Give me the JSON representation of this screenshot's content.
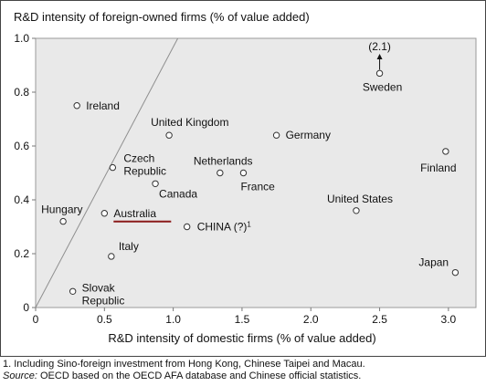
{
  "chart_data": {
    "type": "scatter",
    "ylabel": "R&D intensity of foreign-owned firms (% of value added)",
    "xlabel": "R&D intensity of domestic firms (% of value added)",
    "xlim": [
      0,
      3.2
    ],
    "ylim": [
      0,
      1.0
    ],
    "xticks": [
      0,
      0.5,
      1.0,
      1.5,
      2.0,
      2.5,
      3.0
    ],
    "xtick_labels": [
      "0",
      "0.5",
      "1.0",
      "1.5",
      "2.0",
      "2.5",
      "3.0"
    ],
    "yticks": [
      0,
      0.2,
      0.4,
      0.6,
      0.8,
      1.0
    ],
    "ytick_labels": [
      "0",
      "0.2",
      "0.4",
      "0.6",
      "0.8",
      "1.0"
    ],
    "reference_line": {
      "x": [
        0,
        1.0
      ],
      "y": [
        0,
        1.0
      ]
    },
    "grid": false,
    "points": [
      {
        "label": "Ireland",
        "x": 0.3,
        "y": 0.75
      },
      {
        "label": "United Kingdom",
        "x": 0.97,
        "y": 0.64
      },
      {
        "label": "Germany",
        "x": 1.75,
        "y": 0.64
      },
      {
        "label": "Sweden",
        "x": 2.5,
        "y": 0.87
      },
      {
        "label": "Finland",
        "x": 2.98,
        "y": 0.58
      },
      {
        "label": "Czech Republic",
        "x": 0.56,
        "y": 0.52
      },
      {
        "label": "Netherlands",
        "x": 1.34,
        "y": 0.5
      },
      {
        "label": "France",
        "x": 1.51,
        "y": 0.5
      },
      {
        "label": "Canada",
        "x": 0.87,
        "y": 0.46
      },
      {
        "label": "United States",
        "x": 2.33,
        "y": 0.36
      },
      {
        "label": "Hungary",
        "x": 0.2,
        "y": 0.32
      },
      {
        "label": "Australia",
        "x": 0.5,
        "y": 0.35
      },
      {
        "label": "CHINA (?)1",
        "x": 1.1,
        "y": 0.3
      },
      {
        "label": "Italy",
        "x": 0.55,
        "y": 0.19
      },
      {
        "label": "Japan",
        "x": 3.05,
        "y": 0.13
      },
      {
        "label": "Slovak Republic",
        "x": 0.27,
        "y": 0.06
      }
    ],
    "annotations": [
      {
        "text": "(2.1)",
        "point": "Sweden"
      }
    ],
    "highlight": {
      "point": "Australia",
      "color": "#8b1a1a"
    }
  },
  "footnote": "1. Including Sino-foreign investment from Hong Kong, Chinese Taipei and Macau.",
  "source_label": "Source:",
  "source_text": " OECD based on the OECD AFA database and Chinese official statistics."
}
